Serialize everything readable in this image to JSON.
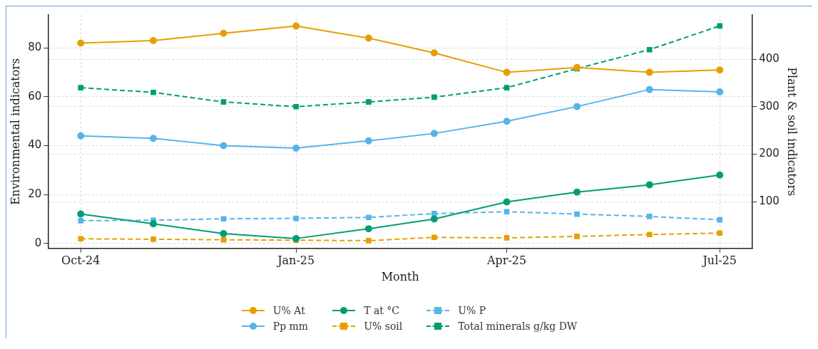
{
  "chart_data": {
    "type": "line",
    "xlabel": "Month",
    "ylabel": "Environmental indicators",
    "y2label": "Plant & soil indicators",
    "x": [
      "2024-10",
      "2024-11",
      "2024-12",
      "2025-01",
      "2025-02",
      "2025-03",
      "2025-04",
      "2025-05",
      "2025-06",
      "2025-07"
    ],
    "xlim": [
      "2024-09-17",
      "2025-07-15"
    ],
    "xticks": [
      {
        "value": "2024-10",
        "label": "Oct-24"
      },
      {
        "value": "2025-01",
        "label": "Jan-25"
      },
      {
        "value": "2025-04",
        "label": "Apr-25"
      },
      {
        "value": "2025-07",
        "label": "Jul-25"
      }
    ],
    "ylim": [
      -2,
      93.5
    ],
    "yticks": [
      0,
      20,
      40,
      60,
      80
    ],
    "y2lim": [
      2,
      493
    ],
    "y2ticks": [
      100,
      200,
      300,
      400
    ],
    "grid": true,
    "legend": "bottom",
    "series": [
      {
        "name": "U% At",
        "color": "#e69f00",
        "marker": "circle",
        "line_style": "solid",
        "values": [
          82,
          83,
          86,
          89,
          84,
          78,
          70,
          72,
          70,
          71
        ]
      },
      {
        "name": "Pp mm",
        "color": "#56b4e9",
        "marker": "circle",
        "line_style": "solid",
        "values": [
          44,
          43,
          40,
          39,
          42,
          45,
          50,
          56,
          63,
          62
        ]
      },
      {
        "name": "T at °C",
        "color": "#009e73",
        "marker": "circle",
        "line_style": "solid",
        "values": [
          12,
          8,
          4,
          2,
          6,
          10,
          17,
          21,
          24,
          28
        ]
      },
      {
        "name": "U% soil",
        "color": "#e69f00",
        "marker": "square",
        "line_style": "dashed",
        "axis": "y2",
        "values": [
          22,
          21,
          20,
          19,
          18,
          25,
          24,
          27,
          31,
          34
        ]
      },
      {
        "name": "U% P",
        "color": "#56b4e9",
        "marker": "square",
        "line_style": "dashed",
        "axis": "y2",
        "values": [
          60,
          61,
          64,
          65,
          67,
          75,
          79,
          74,
          69,
          62
        ]
      },
      {
        "name": "Total minerals g/kg DW",
        "color": "#009e73",
        "marker": "square",
        "line_style": "dashed",
        "axis": "y2",
        "values": [
          340,
          330,
          310,
          300,
          310,
          320,
          340,
          380,
          420,
          470
        ]
      }
    ]
  }
}
